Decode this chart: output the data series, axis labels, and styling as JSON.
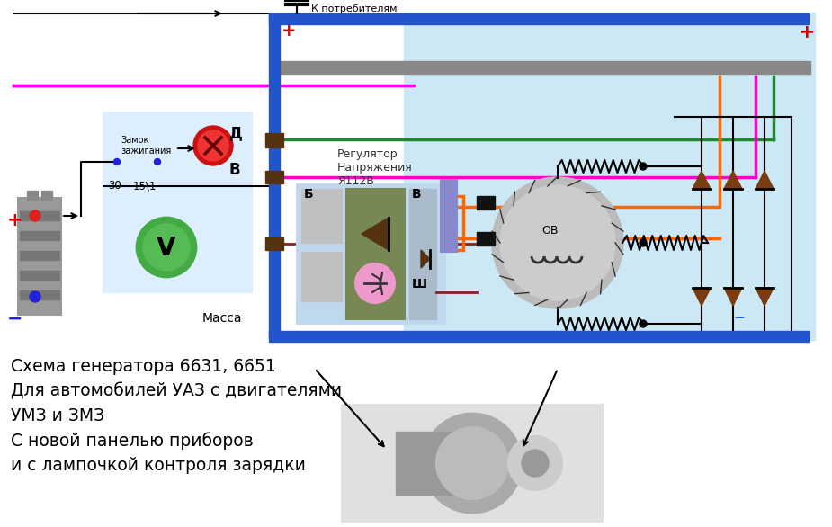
{
  "bg_color": "#ffffff",
  "diagram_bg": "#cce8f5",
  "left_panel_bg": "#ddeeff",
  "title_text": "Схема генератора 6631, 6651\nДля автомобилей УАЗ с двигателями\nУМЗ и ЗМЗ\nС новой панелью приборов\nи с лампочкой контроля зарядки",
  "label_К_потребителям": "К потребителям",
  "label_Масса": "Масса",
  "label_Регулятор": "Регулятор\nНапряжения\nЯ112В",
  "label_Замок": "Замок\nзажигания",
  "label_30": "30",
  "label_15_1": "15\\1",
  "label_Д": "Д",
  "label_В": "В",
  "label_Б": "Б",
  "label_В2": "В",
  "label_Ш": "Ш",
  "label_ОВ": "ОВ",
  "label_plus_left": "+",
  "label_minus_left": "−",
  "label_plus_right": "+",
  "label_minus_right": "−"
}
